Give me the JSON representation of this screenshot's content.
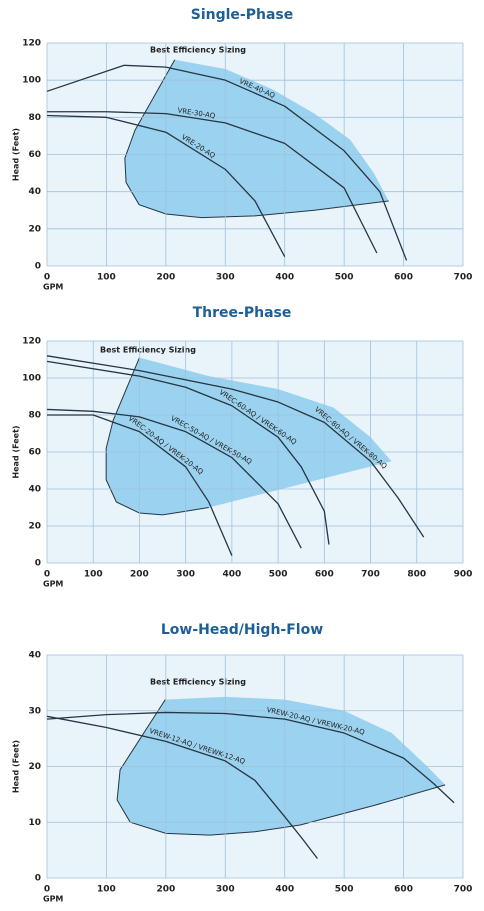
{
  "chart_data": [
    {
      "type": "line",
      "title": "Single-Phase",
      "xlabel": "GPM",
      "ylabel": "Head (Feet)",
      "xlim": [
        0,
        700
      ],
      "ylim": [
        0,
        120
      ],
      "xticks": [
        0,
        100,
        200,
        300,
        400,
        500,
        600,
        700
      ],
      "yticks": [
        0,
        20,
        40,
        60,
        80,
        100,
        120
      ],
      "grid": true,
      "region": {
        "name": "Best Efficiency Sizing",
        "color": "#8ccbec",
        "x": [
          215,
          148,
          131,
          133,
          155,
          200,
          260,
          350,
          450,
          575,
          550,
          510,
          450,
          380,
          300
        ],
        "values": [
          111,
          73,
          58,
          45,
          33,
          28,
          26,
          27,
          30,
          35,
          50,
          68,
          82,
          95,
          106
        ]
      },
      "series": [
        {
          "name": "VRE-40-AQ",
          "color": "#263645",
          "x": [
            0,
            130,
            200,
            300,
            400,
            500,
            560,
            605
          ],
          "values": [
            94,
            108,
            107,
            100,
            86,
            62,
            40,
            3
          ]
        },
        {
          "name": "VRE-30-AQ",
          "color": "#263645",
          "x": [
            0,
            100,
            200,
            300,
            400,
            500,
            555
          ],
          "values": [
            83,
            83,
            82,
            77,
            66,
            42,
            7
          ]
        },
        {
          "name": "VRE-20-AQ",
          "color": "#263645",
          "x": [
            0,
            100,
            200,
            300,
            350,
            400
          ],
          "values": [
            81,
            80,
            72,
            52,
            35,
            5
          ]
        }
      ]
    },
    {
      "type": "line",
      "title": "Three-Phase",
      "xlabel": "GPM",
      "ylabel": "Head (Feet)",
      "xlim": [
        0,
        900
      ],
      "ylim": [
        0,
        120
      ],
      "xticks": [
        0,
        100,
        200,
        300,
        400,
        500,
        600,
        700,
        800,
        900
      ],
      "yticks": [
        0,
        20,
        40,
        60,
        80,
        100,
        120
      ],
      "grid": true,
      "region": {
        "name": "Best Efficiency Sizing",
        "color": "#8ccbec",
        "x": [
          200,
          143,
          128,
          128,
          150,
          200,
          250,
          300,
          350,
          745,
          700,
          620,
          500,
          350
        ],
        "values": [
          111,
          77,
          62,
          45,
          33,
          27,
          26,
          28,
          30,
          55,
          68,
          84,
          94,
          101
        ]
      },
      "series": [
        {
          "name": "VREC-80-AQ / VREK-80-AQ",
          "color": "#263645",
          "x": [
            0,
            200,
            400,
            500,
            600,
            700,
            760,
            815
          ],
          "values": [
            112,
            104,
            94,
            87,
            76,
            55,
            35,
            14
          ]
        },
        {
          "name": "VREC-60-AQ / VREK-60-AQ",
          "color": "#263645",
          "x": [
            0,
            200,
            300,
            400,
            500,
            550,
            600,
            610
          ],
          "values": [
            109,
            101,
            95,
            85,
            68,
            52,
            28,
            10
          ]
        },
        {
          "name": "VREC-50-AQ / VREK-50-AQ",
          "color": "#263645",
          "x": [
            0,
            100,
            200,
            300,
            400,
            500,
            550
          ],
          "values": [
            83,
            82,
            79,
            71,
            57,
            32,
            8
          ]
        },
        {
          "name": "VREC-20-AQ / VREK-20-AQ",
          "color": "#263645",
          "x": [
            0,
            100,
            200,
            300,
            350,
            400
          ],
          "values": [
            80,
            80,
            71,
            52,
            33,
            4
          ]
        }
      ]
    },
    {
      "type": "line",
      "title": "Low-Head/High-Flow",
      "xlabel": "GPM",
      "ylabel": "Head (Feet)",
      "xlim": [
        0,
        700
      ],
      "ylim": [
        0,
        40
      ],
      "xticks": [
        0,
        100,
        200,
        300,
        400,
        500,
        600,
        700
      ],
      "yticks": [
        0,
        10,
        20,
        30,
        40
      ],
      "grid": true,
      "region": {
        "name": "Best Efficiency Sizing",
        "color": "#8ccbec",
        "x": [
          199,
          123,
          118,
          140,
          200,
          274,
          350,
          426,
          550,
          670,
          640,
          580,
          500,
          400,
          300
        ],
        "values": [
          32,
          19.4,
          14,
          10,
          8,
          7.7,
          8.3,
          9.5,
          13,
          16.7,
          20,
          26,
          30,
          32,
          32.5
        ]
      },
      "series": [
        {
          "name": "VREW-20-AQ / VREWK-20-AQ",
          "color": "#263645",
          "x": [
            0,
            100,
            200,
            300,
            400,
            500,
            600,
            650,
            685
          ],
          "values": [
            28.5,
            29.3,
            29.7,
            29.5,
            28.5,
            26,
            21.5,
            17,
            13.5
          ]
        },
        {
          "name": "VREW-12-AQ / VREWK-12-AQ",
          "color": "#263645",
          "x": [
            0,
            100,
            200,
            300,
            350,
            400,
            430,
            455
          ],
          "values": [
            29,
            27,
            24.5,
            21,
            17.5,
            11,
            7,
            3.5
          ]
        }
      ]
    }
  ]
}
